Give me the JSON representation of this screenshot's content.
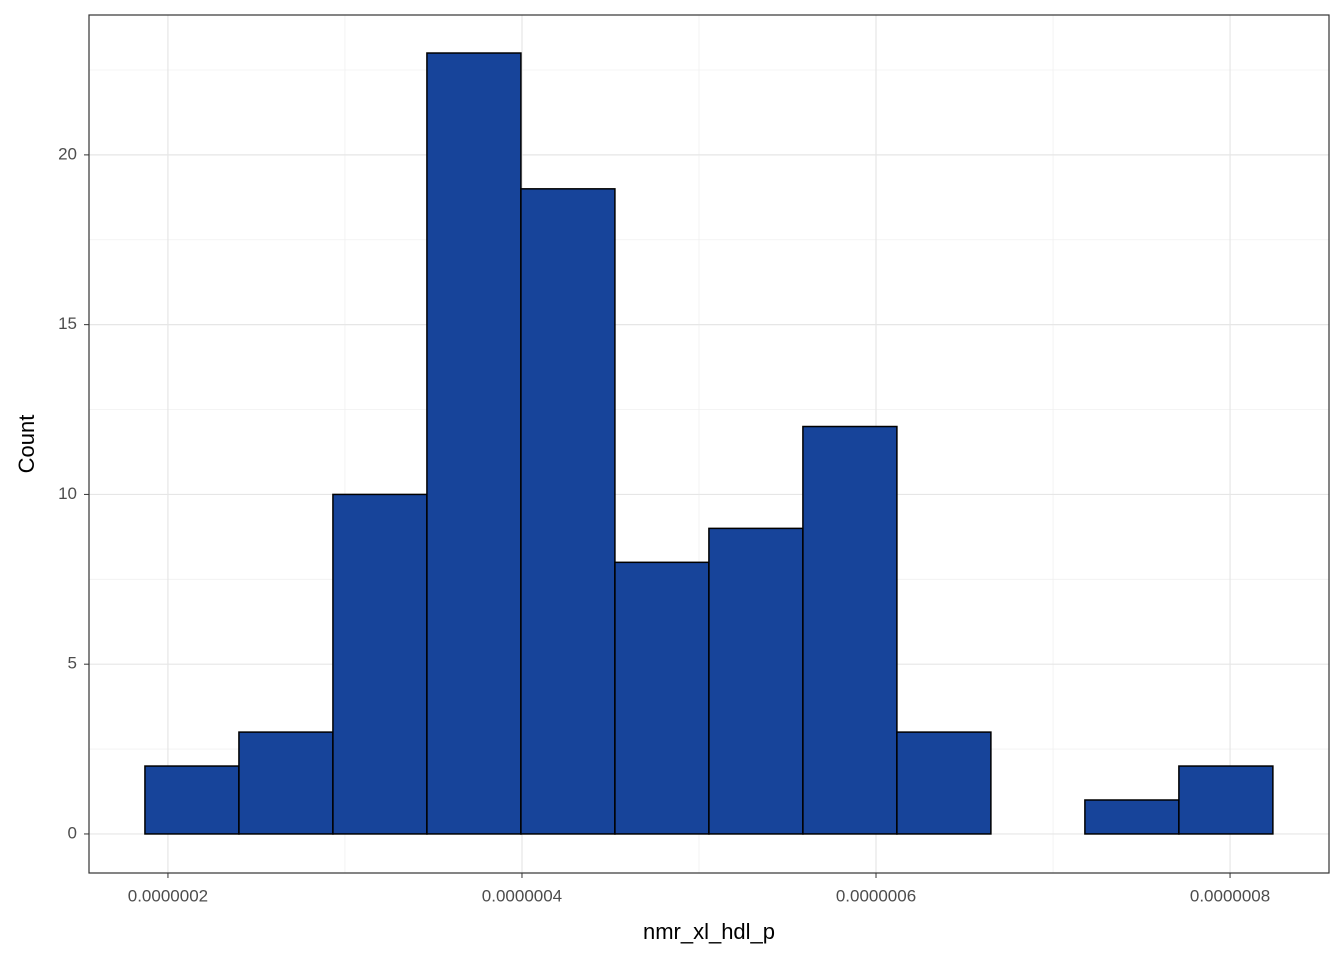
{
  "chart_data": {
    "type": "histogram",
    "x_label": "nmr_xl_hdl_p",
    "y_label": "Count",
    "bins": [
      1.87e-07,
      2.401e-07,
      2.932e-07,
      3.463e-07,
      3.994e-07,
      4.525e-07,
      5.056e-07,
      5.587e-07,
      6.118e-07,
      6.649e-07,
      7.18e-07,
      7.711e-07,
      8.242e-07
    ],
    "counts": [
      2,
      3,
      10,
      23,
      19,
      8,
      9,
      12,
      3,
      0,
      1,
      2
    ],
    "color": "#17449a",
    "edge_color": "#000000",
    "xlim": [
      1.554e-07,
      8.559e-07
    ],
    "xticks": [
      {
        "value": 2e-07,
        "label": "0.0000002"
      },
      {
        "value": 4e-07,
        "label": "0.0000004"
      },
      {
        "value": 6e-07,
        "label": "0.0000006"
      },
      {
        "value": 8e-07,
        "label": "0.0000008"
      }
    ],
    "ylim": [
      -1.15,
      24.12
    ],
    "yticks": [
      0,
      5,
      10,
      15,
      20
    ],
    "grid": true,
    "minor_grid": true
  }
}
